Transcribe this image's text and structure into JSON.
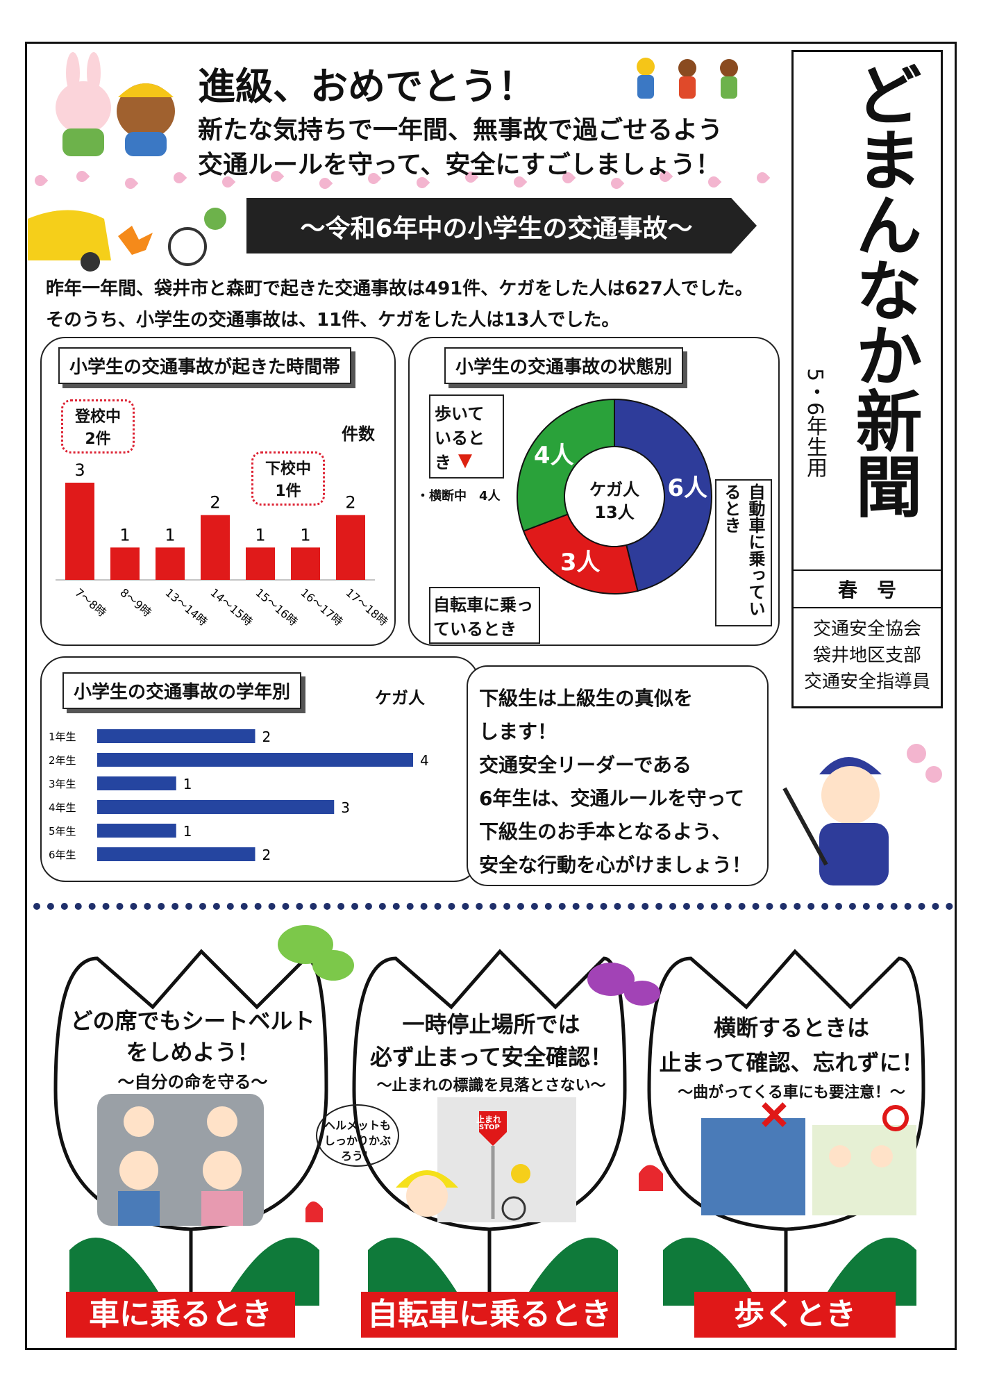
{
  "masthead": {
    "title": "どまんなか新聞",
    "grade": "5・6年生用",
    "issue": "春　号",
    "org1": "交通安全協会",
    "org2": "袋井地区支部",
    "org3": "交通安全指導員"
  },
  "header": {
    "headline": "進級、おめでとう！",
    "line1": "新たな気持ちで一年間、無事故で過ごせるよう",
    "line2": "交通ルールを守って、安全にすごしましょう！"
  },
  "banner": "～令和6年中の小学生の交通事故～",
  "summary": {
    "line1": "昨年一年間、袋井市と森町で起きた交通事故は491件、ケガをした人は627人でした。",
    "line2": "そのうち、小学生の交通事故は、11件、ケガをした人は13人でした。"
  },
  "time_chart": {
    "label": "小学生の交通事故が起きた時間帯",
    "unit": "件数",
    "note_morning": "登校中",
    "note_morning_count": "2件",
    "note_evening": "下校中",
    "note_evening_count": "1件"
  },
  "state_chart": {
    "label": "小学生の交通事故の状態別",
    "center_line1": "ケガ人",
    "center_line2": "13人",
    "walk_label": "歩いているとき",
    "walk_sub": "・横断中　4人",
    "bike_label": "自転車に乗っているとき",
    "car_label": "自動車に乗っているとき"
  },
  "grade_chart": {
    "label": "小学生の交通事故の学年別",
    "unit": "ケガ人"
  },
  "speech": {
    "line1": "下級生は上級生の真似を",
    "line2": "します！",
    "line3": "交通安全リーダーである",
    "line4": "6年生は、交通ルールを守って",
    "line5": "下級生のお手本となるよう、",
    "line6": "安全な行動を心がけましょう！"
  },
  "tulips": [
    {
      "title1": "どの席でもシートベルト",
      "title2": "をしめよう！",
      "sub": "～自分の命を守る～",
      "band": "車に乗るとき"
    },
    {
      "title1": "一時停止場所では",
      "title2": "必ず止まって安全確認！",
      "sub": "～止まれの標識を見落とさない～",
      "band": "自転車に乗るとき",
      "bubble": "ヘルメットもしっかりかぶろう！",
      "sign1": "止まれ",
      "sign2": "STOP"
    },
    {
      "title1": "横断するときは",
      "title2": "止まって確認、忘れずに！",
      "sub": "～曲がってくる車にも要注意！～",
      "band": "歩くとき"
    }
  ],
  "chart_data": [
    {
      "type": "bar",
      "title": "小学生の交通事故が起きた時間帯",
      "ylabel": "件数",
      "categories": [
        "7～8時",
        "8～9時",
        "13～14時",
        "14～15時",
        "15～16時",
        "16～17時",
        "17～18時"
      ],
      "values": [
        3,
        1,
        1,
        2,
        1,
        1,
        2
      ],
      "ylim": [
        0,
        3
      ]
    },
    {
      "type": "pie",
      "title": "小学生の交通事故の状態別",
      "categories": [
        "自動車に乗っているとき",
        "自転車に乗っているとき",
        "歩いているとき"
      ],
      "values": [
        6,
        3,
        4
      ],
      "value_labels": [
        "6人",
        "3人",
        "4人"
      ],
      "colors": [
        "#2e3c9a",
        "#e01a1a",
        "#2aa23a"
      ]
    },
    {
      "type": "bar",
      "title": "小学生の交通事故の学年別",
      "xlabel": "ケガ人",
      "categories": [
        "1年生",
        "2年生",
        "3年生",
        "4年生",
        "5年生",
        "6年生"
      ],
      "values": [
        2,
        4,
        1,
        3,
        1,
        2
      ],
      "xlim": [
        0,
        4
      ]
    }
  ]
}
